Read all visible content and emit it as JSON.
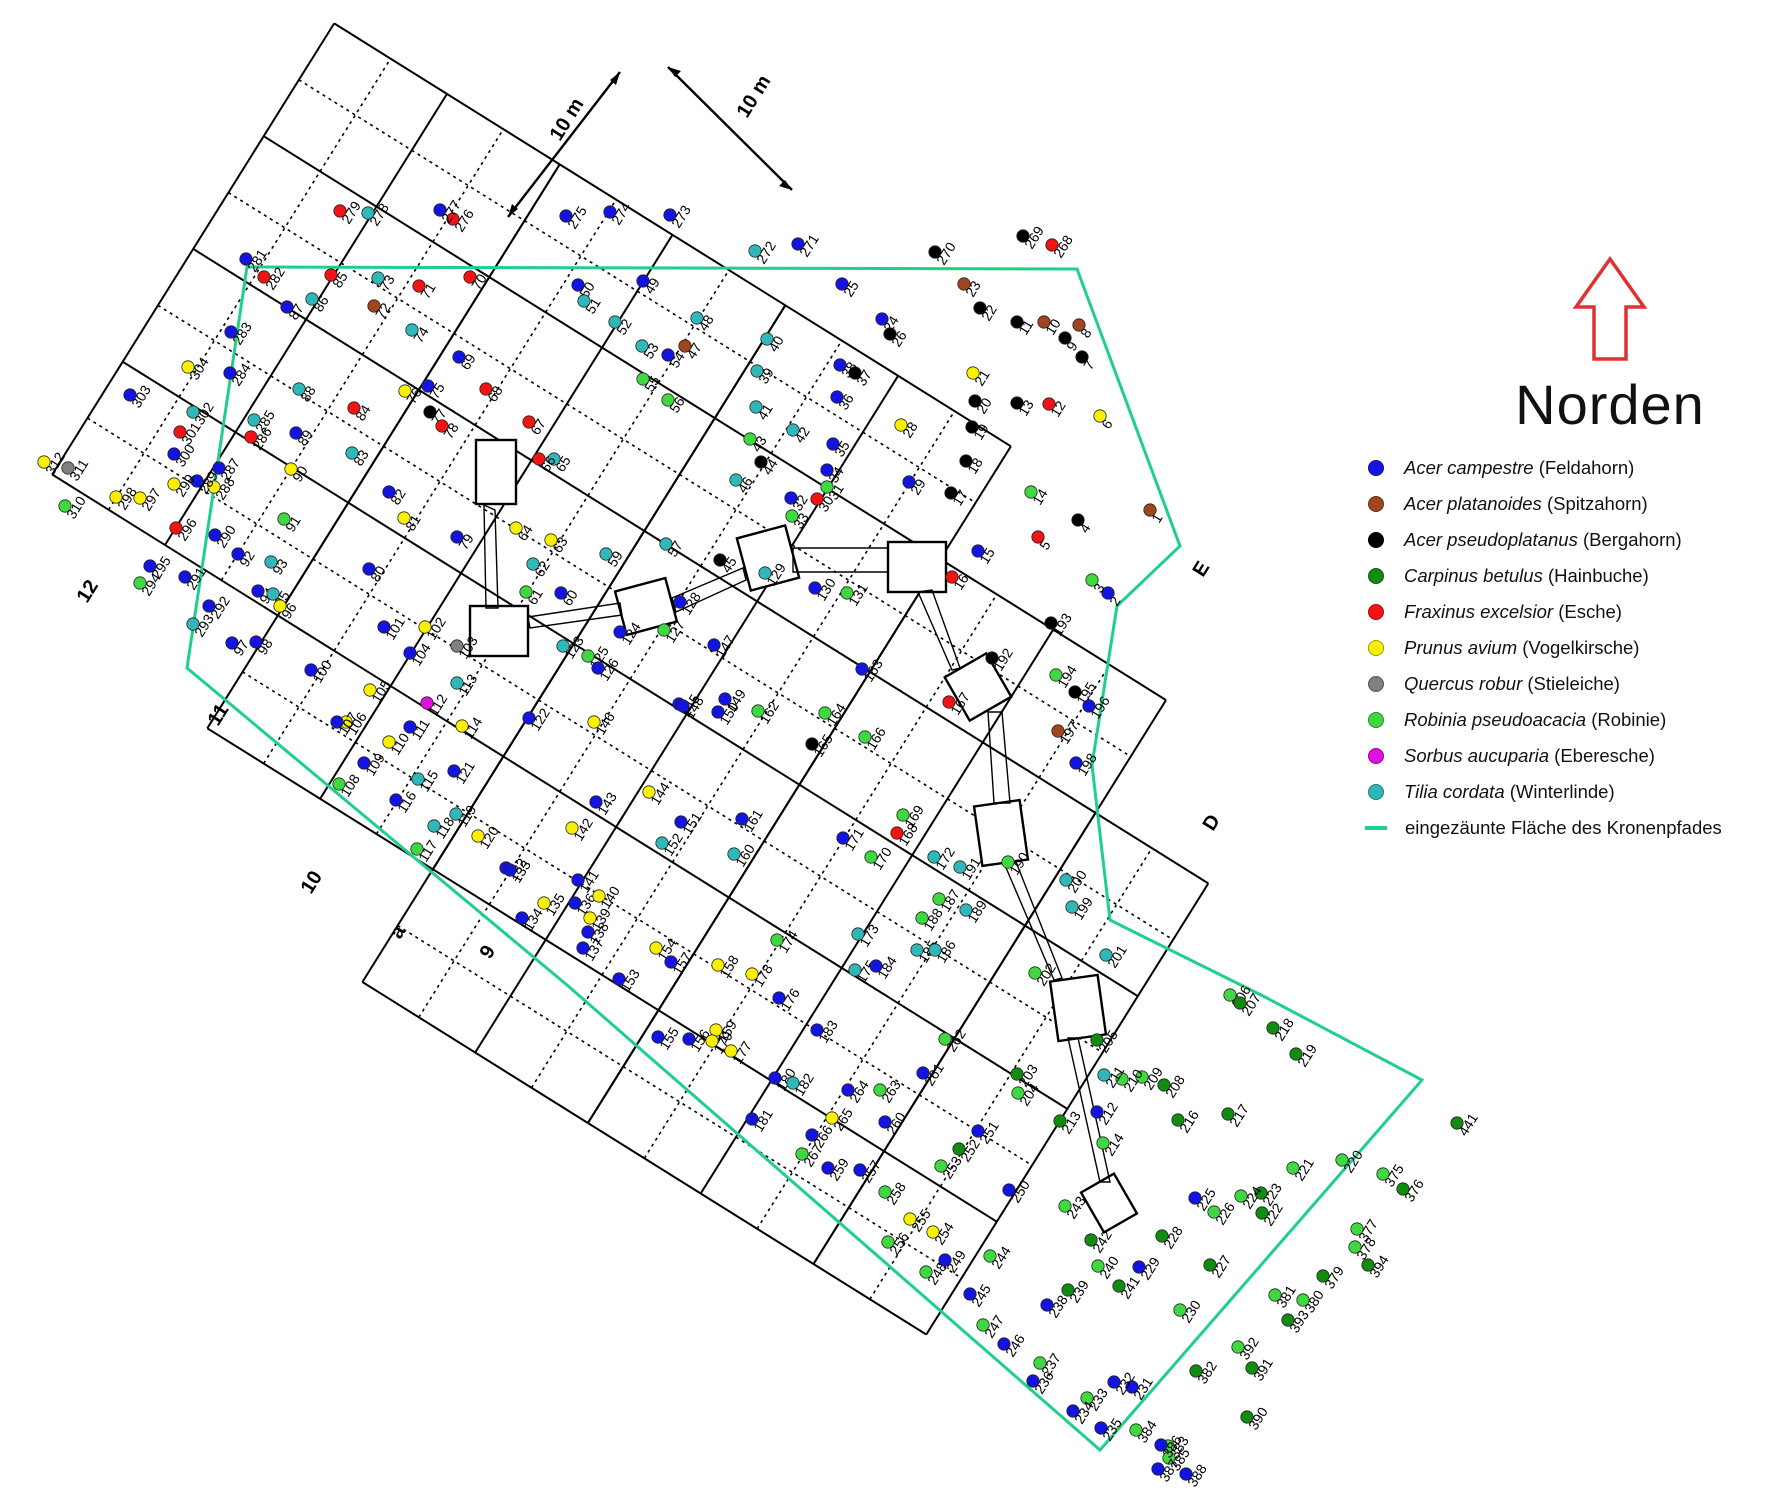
{
  "north": {
    "label": "Norden",
    "arrow_color": "#e03030"
  },
  "scale": {
    "label_a": "10 m",
    "label_b": "10 m"
  },
  "grid_labels": {
    "row_12": "12",
    "row_11": "11",
    "row_10": "10",
    "row_9": "9",
    "col_a": "a",
    "col_E": "E",
    "col_D": "D"
  },
  "fence": {
    "color": "#1ed08a"
  },
  "species": [
    {
      "key": "ac",
      "latin": "Acer campestre",
      "common": "(Feldahorn)",
      "color": "#1414e0"
    },
    {
      "key": "ap",
      "latin": "Acer platanoides",
      "common": "(Spitzahorn)",
      "color": "#a0461e"
    },
    {
      "key": "aps",
      "latin": "Acer pseudoplatanus",
      "common": "(Bergahorn)",
      "color": "#000000"
    },
    {
      "key": "cb",
      "latin": "Carpinus betulus",
      "common": "(Hainbuche)",
      "color": "#118c11"
    },
    {
      "key": "fe",
      "latin": "Fraxinus excelsior",
      "common": "(Esche)",
      "color": "#f01414"
    },
    {
      "key": "pa",
      "latin": "Prunus avium",
      "common": "(Vogelkirsche)",
      "color": "#f8f000"
    },
    {
      "key": "qr",
      "latin": "Quercus robur",
      "common": "(Stieleiche)",
      "color": "#808080"
    },
    {
      "key": "rp",
      "latin": "Robinia pseudoacacia",
      "common": "(Robinie)",
      "color": "#40d840"
    },
    {
      "key": "sa",
      "latin": "Sorbus aucuparia",
      "common": "(Eberesche)",
      "color": "#e010e0"
    },
    {
      "key": "tc",
      "latin": "Tilia cordata",
      "common": "(Winterlinde)",
      "color": "#30b8b8"
    }
  ],
  "fence_legend": "eingezäunte Fläche des Kronenpfades",
  "trees": [
    {
      "id": "1",
      "sp": "ap"
    },
    {
      "id": "2",
      "sp": "ac"
    },
    {
      "id": "3",
      "sp": "rp"
    },
    {
      "id": "4",
      "sp": "aps"
    },
    {
      "id": "5",
      "sp": "fe"
    },
    {
      "id": "6",
      "sp": "pa"
    },
    {
      "id": "7",
      "sp": "aps"
    },
    {
      "id": "8",
      "sp": "ap"
    },
    {
      "id": "9",
      "sp": "aps"
    },
    {
      "id": "10",
      "sp": "ap"
    },
    {
      "id": "11",
      "sp": "aps"
    },
    {
      "id": "12",
      "sp": "fe"
    },
    {
      "id": "13",
      "sp": "aps"
    },
    {
      "id": "14",
      "sp": "rp"
    },
    {
      "id": "15",
      "sp": "ac"
    },
    {
      "id": "16",
      "sp": "fe"
    },
    {
      "id": "17",
      "sp": "aps"
    },
    {
      "id": "18",
      "sp": "aps"
    },
    {
      "id": "19",
      "sp": "aps"
    },
    {
      "id": "20",
      "sp": "aps"
    },
    {
      "id": "21",
      "sp": "pa"
    },
    {
      "id": "22",
      "sp": "aps"
    },
    {
      "id": "23",
      "sp": "ap"
    },
    {
      "id": "24",
      "sp": "ac"
    },
    {
      "id": "25",
      "sp": "ac"
    },
    {
      "id": "26",
      "sp": "aps"
    },
    {
      "id": "28",
      "sp": "pa"
    },
    {
      "id": "29",
      "sp": "ac"
    },
    {
      "id": "30",
      "sp": "fe"
    },
    {
      "id": "31",
      "sp": "rp"
    },
    {
      "id": "32",
      "sp": "ac"
    },
    {
      "id": "33",
      "sp": "rp"
    },
    {
      "id": "34",
      "sp": "ac"
    },
    {
      "id": "35",
      "sp": "ac"
    },
    {
      "id": "36",
      "sp": "ac"
    },
    {
      "id": "37",
      "sp": "aps"
    },
    {
      "id": "38",
      "sp": "ac"
    },
    {
      "id": "39",
      "sp": "tc"
    },
    {
      "id": "40",
      "sp": "tc"
    },
    {
      "id": "41",
      "sp": "tc"
    },
    {
      "id": "42",
      "sp": "tc"
    },
    {
      "id": "43",
      "sp": "rp"
    },
    {
      "id": "44",
      "sp": "aps"
    },
    {
      "id": "45",
      "sp": "aps"
    },
    {
      "id": "46",
      "sp": "tc"
    },
    {
      "id": "47",
      "sp": "ap"
    },
    {
      "id": "48",
      "sp": "tc"
    },
    {
      "id": "49",
      "sp": "ac"
    },
    {
      "id": "50",
      "sp": "ac"
    },
    {
      "id": "51",
      "sp": "tc"
    },
    {
      "id": "52",
      "sp": "tc"
    },
    {
      "id": "53",
      "sp": "tc"
    },
    {
      "id": "54",
      "sp": "ac"
    },
    {
      "id": "55",
      "sp": "rp"
    },
    {
      "id": "56",
      "sp": "rp"
    },
    {
      "id": "57",
      "sp": "tc"
    },
    {
      "id": "59",
      "sp": "tc"
    },
    {
      "id": "60",
      "sp": "ac"
    },
    {
      "id": "61",
      "sp": "rp"
    },
    {
      "id": "62",
      "sp": "tc"
    },
    {
      "id": "63",
      "sp": "pa"
    },
    {
      "id": "64",
      "sp": "pa"
    },
    {
      "id": "65",
      "sp": "tc"
    },
    {
      "id": "66",
      "sp": "fe"
    },
    {
      "id": "67",
      "sp": "fe"
    },
    {
      "id": "68",
      "sp": "fe"
    },
    {
      "id": "69",
      "sp": "ac"
    },
    {
      "id": "70",
      "sp": "fe"
    },
    {
      "id": "71",
      "sp": "fe"
    },
    {
      "id": "72",
      "sp": "ap"
    },
    {
      "id": "73",
      "sp": "tc"
    },
    {
      "id": "74",
      "sp": "tc"
    },
    {
      "id": "75",
      "sp": "ac"
    },
    {
      "id": "76",
      "sp": "pa"
    },
    {
      "id": "77",
      "sp": "aps"
    },
    {
      "id": "78",
      "sp": "fe"
    },
    {
      "id": "79",
      "sp": "ac"
    },
    {
      "id": "80",
      "sp": "ac"
    },
    {
      "id": "81",
      "sp": "pa"
    },
    {
      "id": "82",
      "sp": "ac"
    },
    {
      "id": "83",
      "sp": "tc"
    },
    {
      "id": "84",
      "sp": "fe"
    },
    {
      "id": "85",
      "sp": "fe"
    },
    {
      "id": "86",
      "sp": "tc"
    },
    {
      "id": "87",
      "sp": "ac"
    },
    {
      "id": "88",
      "sp": "tc"
    },
    {
      "id": "89",
      "sp": "ac"
    },
    {
      "id": "90",
      "sp": "pa"
    },
    {
      "id": "91",
      "sp": "rp"
    },
    {
      "id": "92",
      "sp": "ac"
    },
    {
      "id": "93",
      "sp": "tc"
    },
    {
      "id": "94",
      "sp": "ac"
    },
    {
      "id": "95",
      "sp": "tc"
    },
    {
      "id": "96",
      "sp": "pa"
    },
    {
      "id": "97",
      "sp": "ac"
    },
    {
      "id": "98",
      "sp": "ac"
    },
    {
      "id": "100",
      "sp": "ac"
    },
    {
      "id": "101",
      "sp": "ac"
    },
    {
      "id": "102",
      "sp": "pa"
    },
    {
      "id": "103",
      "sp": "qr"
    },
    {
      "id": "104",
      "sp": "ac"
    },
    {
      "id": "105",
      "sp": "pa"
    },
    {
      "id": "106",
      "sp": "pa"
    },
    {
      "id": "107",
      "sp": "ac"
    },
    {
      "id": "108",
      "sp": "rp"
    },
    {
      "id": "109",
      "sp": "ac"
    },
    {
      "id": "110",
      "sp": "pa"
    },
    {
      "id": "111",
      "sp": "ac"
    },
    {
      "id": "112",
      "sp": "sa"
    },
    {
      "id": "113",
      "sp": "tc"
    },
    {
      "id": "114",
      "sp": "pa"
    },
    {
      "id": "115",
      "sp": "tc"
    },
    {
      "id": "116",
      "sp": "ac"
    },
    {
      "id": "117",
      "sp": "rp"
    },
    {
      "id": "118",
      "sp": "tc"
    },
    {
      "id": "119",
      "sp": "tc"
    },
    {
      "id": "120",
      "sp": "pa"
    },
    {
      "id": "121",
      "sp": "ac"
    },
    {
      "id": "122",
      "sp": "ac"
    },
    {
      "id": "123",
      "sp": "tc"
    },
    {
      "id": "124",
      "sp": "ac"
    },
    {
      "id": "125",
      "sp": "rp"
    },
    {
      "id": "126",
      "sp": "ac"
    },
    {
      "id": "127",
      "sp": "rp"
    },
    {
      "id": "128",
      "sp": "ac"
    },
    {
      "id": "129",
      "sp": "tc"
    },
    {
      "id": "130",
      "sp": "ac"
    },
    {
      "id": "131",
      "sp": "rp"
    },
    {
      "id": "132",
      "sp": "ac"
    },
    {
      "id": "133",
      "sp": "ac"
    },
    {
      "id": "134",
      "sp": "ac"
    },
    {
      "id": "135",
      "sp": "pa"
    },
    {
      "id": "136",
      "sp": "ac"
    },
    {
      "id": "137",
      "sp": "ac"
    },
    {
      "id": "138",
      "sp": "ac"
    },
    {
      "id": "139",
      "sp": "pa"
    },
    {
      "id": "140",
      "sp": "pa"
    },
    {
      "id": "141",
      "sp": "ac"
    },
    {
      "id": "142",
      "sp": "pa"
    },
    {
      "id": "143",
      "sp": "ac"
    },
    {
      "id": "144",
      "sp": "pa"
    },
    {
      "id": "145",
      "sp": "ac"
    },
    {
      "id": "146",
      "sp": "pa"
    },
    {
      "id": "147",
      "sp": "ac"
    },
    {
      "id": "148",
      "sp": "ac"
    },
    {
      "id": "149",
      "sp": "ac"
    },
    {
      "id": "150",
      "sp": "ac"
    },
    {
      "id": "151",
      "sp": "ac"
    },
    {
      "id": "152",
      "sp": "tc"
    },
    {
      "id": "153",
      "sp": "ac"
    },
    {
      "id": "154",
      "sp": "pa"
    },
    {
      "id": "155",
      "sp": "ac"
    },
    {
      "id": "156",
      "sp": "ac"
    },
    {
      "id": "157",
      "sp": "ac"
    },
    {
      "id": "158",
      "sp": "pa"
    },
    {
      "id": "159",
      "sp": "pa"
    },
    {
      "id": "160",
      "sp": "tc"
    },
    {
      "id": "161",
      "sp": "ac"
    },
    {
      "id": "162",
      "sp": "rp"
    },
    {
      "id": "163",
      "sp": "ac"
    },
    {
      "id": "164",
      "sp": "rp"
    },
    {
      "id": "165",
      "sp": "aps"
    },
    {
      "id": "166",
      "sp": "rp"
    },
    {
      "id": "167",
      "sp": "fe"
    },
    {
      "id": "168",
      "sp": "fe"
    },
    {
      "id": "169",
      "sp": "rp"
    },
    {
      "id": "170",
      "sp": "rp"
    },
    {
      "id": "171",
      "sp": "ac"
    },
    {
      "id": "172",
      "sp": "tc"
    },
    {
      "id": "173",
      "sp": "tc"
    },
    {
      "id": "174",
      "sp": "rp"
    },
    {
      "id": "175",
      "sp": "tc"
    },
    {
      "id": "176",
      "sp": "ac"
    },
    {
      "id": "177",
      "sp": "pa"
    },
    {
      "id": "178",
      "sp": "pa"
    },
    {
      "id": "179",
      "sp": "pa"
    },
    {
      "id": "180",
      "sp": "ac"
    },
    {
      "id": "181",
      "sp": "ac"
    },
    {
      "id": "182",
      "sp": "tc"
    },
    {
      "id": "183",
      "sp": "ac"
    },
    {
      "id": "184",
      "sp": "ac"
    },
    {
      "id": "185",
      "sp": "tc"
    },
    {
      "id": "186",
      "sp": "tc"
    },
    {
      "id": "187",
      "sp": "rp"
    },
    {
      "id": "188",
      "sp": "rp"
    },
    {
      "id": "189",
      "sp": "tc"
    },
    {
      "id": "190",
      "sp": "rp"
    },
    {
      "id": "191",
      "sp": "tc"
    },
    {
      "id": "192",
      "sp": "aps"
    },
    {
      "id": "193",
      "sp": "aps"
    },
    {
      "id": "194",
      "sp": "rp"
    },
    {
      "id": "195",
      "sp": "aps"
    },
    {
      "id": "196",
      "sp": "ac"
    },
    {
      "id": "197",
      "sp": "ap"
    },
    {
      "id": "198",
      "sp": "ac"
    },
    {
      "id": "199",
      "sp": "tc"
    },
    {
      "id": "200",
      "sp": "tc"
    },
    {
      "id": "201",
      "sp": "tc"
    },
    {
      "id": "202",
      "sp": "rp"
    },
    {
      "id": "203",
      "sp": "cb"
    },
    {
      "id": "204",
      "sp": "rp"
    },
    {
      "id": "205",
      "sp": "cb"
    },
    {
      "id": "206",
      "sp": "rp"
    },
    {
      "id": "207",
      "sp": "cb"
    },
    {
      "id": "208",
      "sp": "cb"
    },
    {
      "id": "209",
      "sp": "rp"
    },
    {
      "id": "210",
      "sp": "rp"
    },
    {
      "id": "211",
      "sp": "tc"
    },
    {
      "id": "212",
      "sp": "ac"
    },
    {
      "id": "213",
      "sp": "cb"
    },
    {
      "id": "214",
      "sp": "rp"
    },
    {
      "id": "216",
      "sp": "cb"
    },
    {
      "id": "217",
      "sp": "cb"
    },
    {
      "id": "218",
      "sp": "cb"
    },
    {
      "id": "219",
      "sp": "cb"
    },
    {
      "id": "220",
      "sp": "rp"
    },
    {
      "id": "221",
      "sp": "rp"
    },
    {
      "id": "222",
      "sp": "cb"
    },
    {
      "id": "223",
      "sp": "cb"
    },
    {
      "id": "224",
      "sp": "rp"
    },
    {
      "id": "225",
      "sp": "ac"
    },
    {
      "id": "226",
      "sp": "rp"
    },
    {
      "id": "227",
      "sp": "cb"
    },
    {
      "id": "228",
      "sp": "cb"
    },
    {
      "id": "229",
      "sp": "ac"
    },
    {
      "id": "230",
      "sp": "rp"
    },
    {
      "id": "231",
      "sp": "ac"
    },
    {
      "id": "232",
      "sp": "ac"
    },
    {
      "id": "233",
      "sp": "rp"
    },
    {
      "id": "234",
      "sp": "ac"
    },
    {
      "id": "235",
      "sp": "ac"
    },
    {
      "id": "236",
      "sp": "ac"
    },
    {
      "id": "237",
      "sp": "rp"
    },
    {
      "id": "238",
      "sp": "ac"
    },
    {
      "id": "239",
      "sp": "cb"
    },
    {
      "id": "240",
      "sp": "rp"
    },
    {
      "id": "241",
      "sp": "cb"
    },
    {
      "id": "242",
      "sp": "cb"
    },
    {
      "id": "243",
      "sp": "rp"
    },
    {
      "id": "244",
      "sp": "rp"
    },
    {
      "id": "245",
      "sp": "ac"
    },
    {
      "id": "246",
      "sp": "ac"
    },
    {
      "id": "247",
      "sp": "rp"
    },
    {
      "id": "248",
      "sp": "rp"
    },
    {
      "id": "249",
      "sp": "ac"
    },
    {
      "id": "250",
      "sp": "ac"
    },
    {
      "id": "251",
      "sp": "ac"
    },
    {
      "id": "252",
      "sp": "cb"
    },
    {
      "id": "253",
      "sp": "rp"
    },
    {
      "id": "254",
      "sp": "pa"
    },
    {
      "id": "255",
      "sp": "pa"
    },
    {
      "id": "256",
      "sp": "rp"
    },
    {
      "id": "257",
      "sp": "ac"
    },
    {
      "id": "258",
      "sp": "rp"
    },
    {
      "id": "259",
      "sp": "ac"
    },
    {
      "id": "260",
      "sp": "ac"
    },
    {
      "id": "261",
      "sp": "ac"
    },
    {
      "id": "262",
      "sp": "rp"
    },
    {
      "id": "263",
      "sp": "rp"
    },
    {
      "id": "264",
      "sp": "ac"
    },
    {
      "id": "265",
      "sp": "pa"
    },
    {
      "id": "266",
      "sp": "ac"
    },
    {
      "id": "267",
      "sp": "rp"
    },
    {
      "id": "268",
      "sp": "fe"
    },
    {
      "id": "269",
      "sp": "aps"
    },
    {
      "id": "270",
      "sp": "aps"
    },
    {
      "id": "271",
      "sp": "ac"
    },
    {
      "id": "272",
      "sp": "tc"
    },
    {
      "id": "273",
      "sp": "ac"
    },
    {
      "id": "274",
      "sp": "ac"
    },
    {
      "id": "275",
      "sp": "ac"
    },
    {
      "id": "276",
      "sp": "fe"
    },
    {
      "id": "277",
      "sp": "ac"
    },
    {
      "id": "278",
      "sp": "tc"
    },
    {
      "id": "279",
      "sp": "fe"
    },
    {
      "id": "281",
      "sp": "ac"
    },
    {
      "id": "282",
      "sp": "fe"
    },
    {
      "id": "283",
      "sp": "ac"
    },
    {
      "id": "284",
      "sp": "ac"
    },
    {
      "id": "285",
      "sp": "tc"
    },
    {
      "id": "286",
      "sp": "fe"
    },
    {
      "id": "287",
      "sp": "ac"
    },
    {
      "id": "288",
      "sp": "pa"
    },
    {
      "id": "289",
      "sp": "ac"
    },
    {
      "id": "290",
      "sp": "ac"
    },
    {
      "id": "291",
      "sp": "ac"
    },
    {
      "id": "292",
      "sp": "ac"
    },
    {
      "id": "293",
      "sp": "tc"
    },
    {
      "id": "294",
      "sp": "rp"
    },
    {
      "id": "295",
      "sp": "ac"
    },
    {
      "id": "296",
      "sp": "fe"
    },
    {
      "id": "297",
      "sp": "pa"
    },
    {
      "id": "298",
      "sp": "pa"
    },
    {
      "id": "299",
      "sp": "pa"
    },
    {
      "id": "300",
      "sp": "ac"
    },
    {
      "id": "301",
      "sp": "fe"
    },
    {
      "id": "302",
      "sp": "tc"
    },
    {
      "id": "303",
      "sp": "ac"
    },
    {
      "id": "304",
      "sp": "pa"
    },
    {
      "id": "310",
      "sp": "rp"
    },
    {
      "id": "311",
      "sp": "qr"
    },
    {
      "id": "312",
      "sp": "pa"
    },
    {
      "id": "375",
      "sp": "rp"
    },
    {
      "id": "376",
      "sp": "cb"
    },
    {
      "id": "377",
      "sp": "rp"
    },
    {
      "id": "378",
      "sp": "rp"
    },
    {
      "id": "379",
      "sp": "cb"
    },
    {
      "id": "380",
      "sp": "rp"
    },
    {
      "id": "381",
      "sp": "rp"
    },
    {
      "id": "382",
      "sp": "cb"
    },
    {
      "id": "383",
      "sp": "rp"
    },
    {
      "id": "384",
      "sp": "rp"
    },
    {
      "id": "385",
      "sp": "rp"
    },
    {
      "id": "386",
      "sp": "ac"
    },
    {
      "id": "387",
      "sp": "ac"
    },
    {
      "id": "388",
      "sp": "ac"
    },
    {
      "id": "390",
      "sp": "cb"
    },
    {
      "id": "391",
      "sp": "cb"
    },
    {
      "id": "392",
      "sp": "rp"
    },
    {
      "id": "393",
      "sp": "cb"
    },
    {
      "id": "394",
      "sp": "cb"
    },
    {
      "id": "441",
      "sp": "cb"
    }
  ]
}
